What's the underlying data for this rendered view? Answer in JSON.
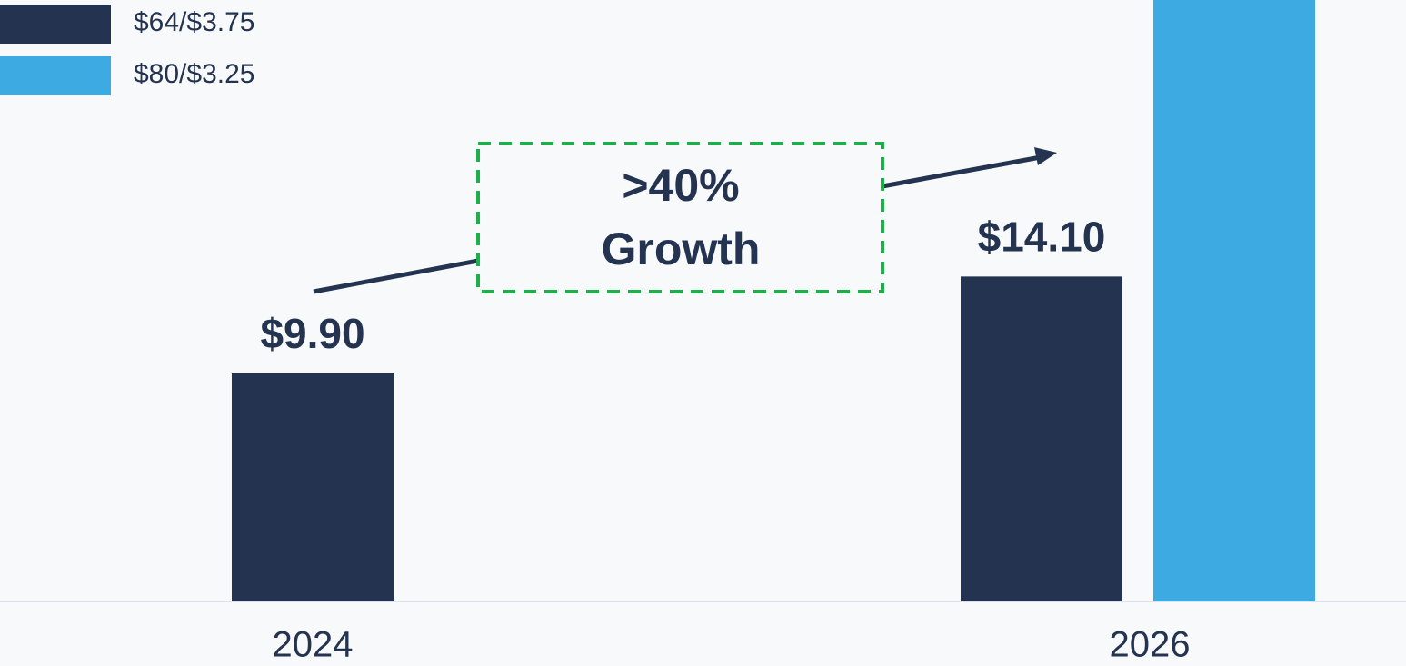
{
  "chart_data": {
    "type": "bar",
    "categories": [
      "2024",
      "2026"
    ],
    "series": [
      {
        "name": "$64/$3.75",
        "color": "#243450",
        "values": [
          9.9,
          14.1
        ],
        "value_labels": [
          "$9.90",
          "$14.10"
        ]
      },
      {
        "name": "$80/$3.25",
        "color": "#3daae2",
        "values": [
          null,
          27
        ]
      }
    ],
    "ylim": [
      0,
      26.1
    ],
    "annotation": [
      ">40%",
      "Growth"
    ],
    "annotation_color": "#1db04a"
  }
}
